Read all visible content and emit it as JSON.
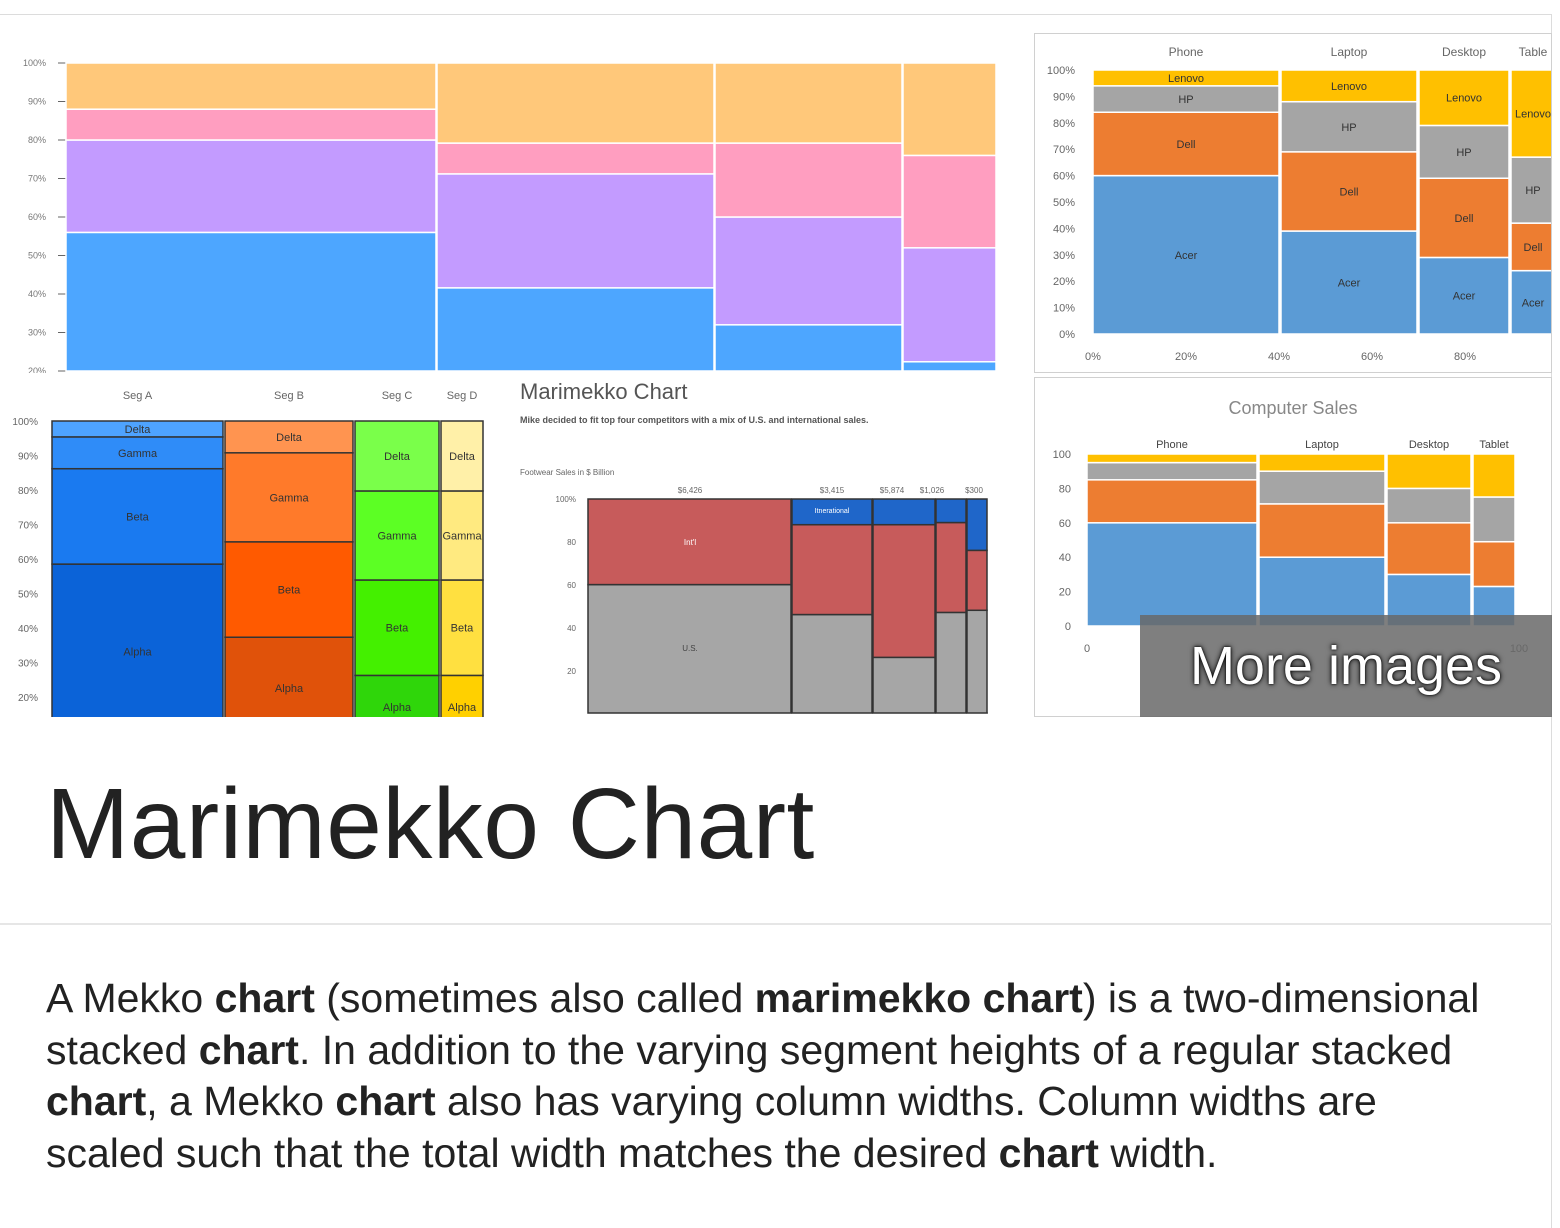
{
  "images": {
    "img1": {
      "y_ticks": [
        "100%",
        "90%",
        "80%",
        "70%",
        "60%",
        "50%",
        "40%",
        "30%",
        "20%"
      ]
    },
    "img2": {
      "columns": [
        "Phone",
        "Laptop",
        "Desktop",
        "Table"
      ],
      "y_ticks": [
        "100%",
        "90%",
        "80%",
        "70%",
        "60%",
        "50%",
        "40%",
        "30%",
        "20%",
        "10%",
        "0%"
      ],
      "x_ticks": [
        "0%",
        "20%",
        "40%",
        "60%",
        "80%"
      ],
      "segment_labels": [
        "Acer",
        "Dell",
        "HP",
        "Lenovo"
      ]
    },
    "img3": {
      "columns": [
        "Seg A",
        "Seg B",
        "Seg C",
        "Seg D"
      ],
      "y_ticks": [
        "100%",
        "90%",
        "80%",
        "70%",
        "60%",
        "50%",
        "40%",
        "30%",
        "20%"
      ],
      "segment_labels": [
        "Alpha",
        "Beta",
        "Gamma",
        "Delta"
      ]
    },
    "img4": {
      "title": "Marimekko Chart",
      "subtitle": "Mike decided to fit top four competitors with a mix of U.S. and international sales.",
      "axis_title": "Footwear Sales in $ Billion",
      "y_ticks": [
        "100%",
        "80",
        "60",
        "40",
        "20"
      ],
      "top_values": [
        "$6,426",
        "$3,415",
        "$5,874",
        "$1,026",
        "$300"
      ],
      "segment_labels": [
        "Int'l",
        "U.S.",
        "Itnerational"
      ]
    },
    "img5": {
      "title": "Computer Sales",
      "columns": [
        "Phone",
        "Laptop",
        "Desktop",
        "Tablet"
      ],
      "y_ticks": [
        "100",
        "80",
        "60",
        "40",
        "20",
        "0"
      ],
      "x_ticks": [
        "0",
        "100"
      ]
    }
  },
  "more_images_label": "More images",
  "title": "Marimekko Chart",
  "description": [
    {
      "t": "A Mekko ",
      "b": false
    },
    {
      "t": "chart",
      "b": true
    },
    {
      "t": " (sometimes also called ",
      "b": false
    },
    {
      "t": "marimekko chart",
      "b": true
    },
    {
      "t": ") is a two-dimensional stacked ",
      "b": false
    },
    {
      "t": "chart",
      "b": true
    },
    {
      "t": ". In addition to the varying segment heights of a regular stacked ",
      "b": false
    },
    {
      "t": "chart",
      "b": true
    },
    {
      "t": ", a Mekko ",
      "b": false
    },
    {
      "t": "chart",
      "b": true
    },
    {
      "t": " also has varying column widths. Column widths are scaled such that the total width matches the desired ",
      "b": false
    },
    {
      "t": "chart",
      "b": true
    },
    {
      "t": " width.",
      "b": false
    }
  ],
  "colors": {
    "blue": "#4da6ff",
    "violet": "#c39bff",
    "pink": "#ff9ec0",
    "apricot": "#ffc87a",
    "acer": "#5b9bd5",
    "dell": "#ed7d31",
    "hp": "#a5a5a5",
    "lenovo": "#ffc000",
    "alpha_blue": "#0b63d8",
    "alpha_orange": "#e0520a",
    "alpha_green": "#2fd60a",
    "alpha_yellow": "#ffd24d",
    "red": "#c75b5b",
    "gray": "#a6a6a6",
    "navy": "#1f66c9"
  }
}
